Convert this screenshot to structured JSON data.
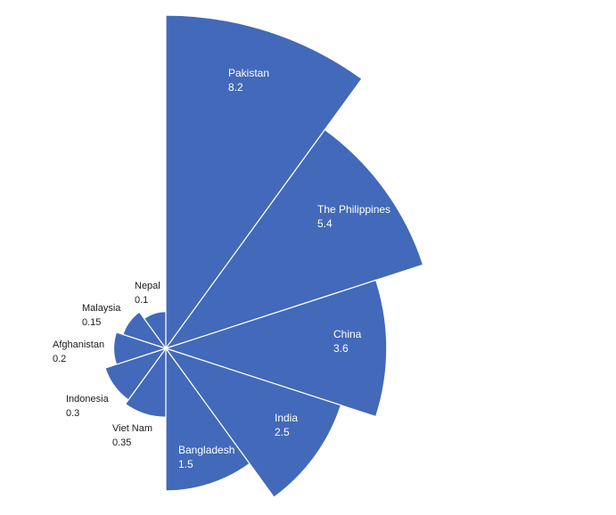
{
  "chart_data": {
    "type": "polar-area",
    "title": "",
    "colors": {
      "slice": "#4269BA",
      "separator": "#ffffff"
    },
    "slices": [
      {
        "name": "Pakistan",
        "value": 8.2
      },
      {
        "name": "The Philippines",
        "value": 5.4
      },
      {
        "name": "China",
        "value": 3.6
      },
      {
        "name": "India",
        "value": 2.5
      },
      {
        "name": "Bangladesh",
        "value": 1.5
      },
      {
        "name": "Viet Nam",
        "value": 0.35
      },
      {
        "name": "Indonesia",
        "value": 0.3
      },
      {
        "name": "Afghanistan",
        "value": 0.2
      },
      {
        "name": "Malaysia",
        "value": 0.15
      },
      {
        "name": "Nepal",
        "value": 0.1
      }
    ]
  }
}
